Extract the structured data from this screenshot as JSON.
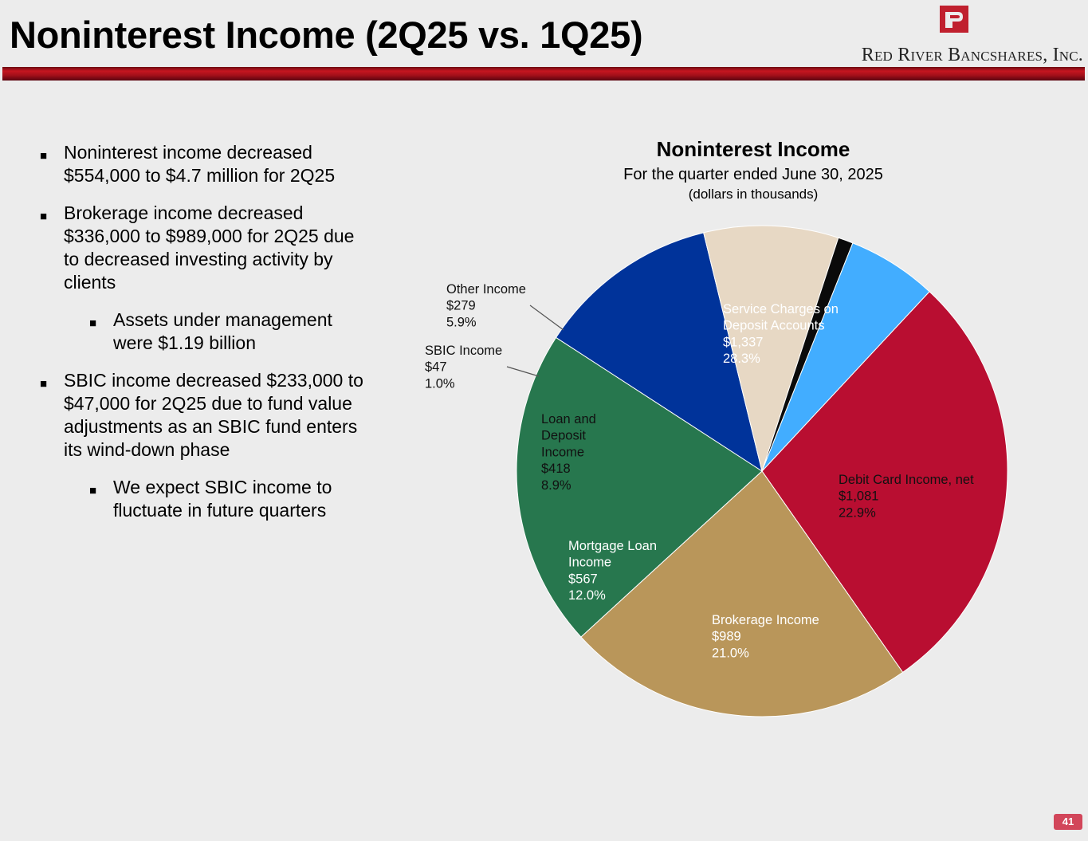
{
  "header": {
    "title": "Noninterest Income (2Q25 vs. 1Q25)",
    "logo_text": "Red River Bancshares, Inc.",
    "brand_color": "#c0202e"
  },
  "bullets": [
    {
      "level": 1,
      "text": "Noninterest income decreased $554,000 to $4.7 million for 2Q25"
    },
    {
      "level": 1,
      "text": "Brokerage income decreased $336,000 to $989,000 for 2Q25 due to decreased investing activity by clients"
    },
    {
      "level": 2,
      "text": "Assets under management were $1.19 billion"
    },
    {
      "level": 1,
      "text": "SBIC income decreased $233,000 to $47,000 for 2Q25 due to fund value adjustments as an SBIC fund enters its wind-down phase"
    },
    {
      "level": 2,
      "text": "We expect SBIC income to fluctuate in future quarters"
    }
  ],
  "chart_data": {
    "type": "pie",
    "title": "Noninterest Income",
    "subtitle": "For the quarter ended June 30, 2025",
    "unit_note": "(dollars in thousands)",
    "slices": [
      {
        "label": "Service Charges on Deposit Accounts",
        "value": 1337,
        "value_label": "$1,337",
        "percent_label": "28.3%",
        "color": "#b90e31",
        "text_color": "#ffffff"
      },
      {
        "label": "Debit Card Income, net",
        "value": 1081,
        "value_label": "$1,081",
        "percent_label": "22.9%",
        "color": "#b9965a",
        "text_color": "#111111"
      },
      {
        "label": "Brokerage Income",
        "value": 989,
        "value_label": "$989",
        "percent_label": "21.0%",
        "color": "#27774e",
        "text_color": "#ffffff"
      },
      {
        "label": "Mortgage Loan Income",
        "value": 567,
        "value_label": "$567",
        "percent_label": "12.0%",
        "color": "#00339a",
        "text_color": "#ffffff"
      },
      {
        "label": "Loan and Deposit Income",
        "value": 418,
        "value_label": "$418",
        "percent_label": "8.9%",
        "color": "#e7d8c4",
        "text_color": "#111111"
      },
      {
        "label": "SBIC Income",
        "value": 47,
        "value_label": "$47",
        "percent_label": "1.0%",
        "color": "#0a0a0a",
        "text_color": "#111111"
      },
      {
        "label": "Other Income",
        "value": 279,
        "value_label": "$279",
        "percent_label": "5.9%",
        "color": "#42adff",
        "text_color": "#111111"
      }
    ]
  },
  "footer": {
    "page_number": "41"
  }
}
